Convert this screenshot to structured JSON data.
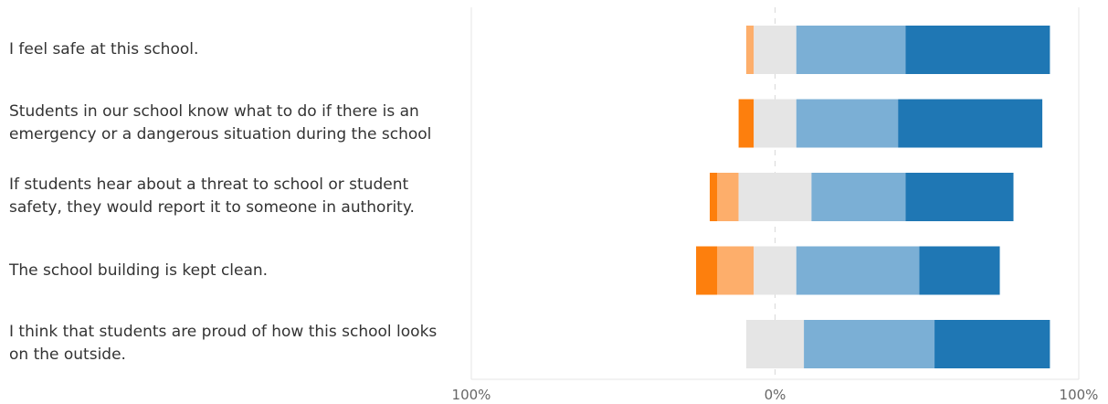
{
  "chart_data": {
    "type": "bar",
    "orientation": "horizontal",
    "stacked": "diverging",
    "categories": [
      "I feel safe at this school.",
      "Students in our school know what to do if there is an emergency or a dangerous situation during the school",
      "If students hear about a threat to school or student safety, they would report it to someone in authority.",
      "The school building is kept clean.",
      "I think that students are proud of how this school looks on the outside."
    ],
    "series": [
      {
        "key": "s1",
        "color": "#fd7f0d",
        "values": [
          0,
          5,
          2.5,
          7,
          0
        ]
      },
      {
        "key": "s2",
        "color": "#fdae6b",
        "values": [
          2.5,
          0,
          7,
          12,
          0
        ]
      },
      {
        "key": "s3",
        "color": "#e5e5e5",
        "values": [
          14,
          14,
          24,
          14,
          19
        ]
      },
      {
        "key": "s4",
        "color": "#7bafd5",
        "values": [
          36,
          33.5,
          31,
          40.5,
          43
        ]
      },
      {
        "key": "s5",
        "color": "#1f77b4",
        "values": [
          47.5,
          47.5,
          35.5,
          26.5,
          38
        ]
      }
    ],
    "neutral_series": "s3",
    "xlim": [
      -100,
      100
    ],
    "x_ticks": [
      {
        "value": -100,
        "label": "100%"
      },
      {
        "value": 0,
        "label": "0%"
      },
      {
        "value": 100,
        "label": "100%"
      }
    ],
    "title": "",
    "xlabel": "",
    "ylabel": "",
    "grid": false,
    "zero_line": "dashed",
    "legend": "none"
  }
}
